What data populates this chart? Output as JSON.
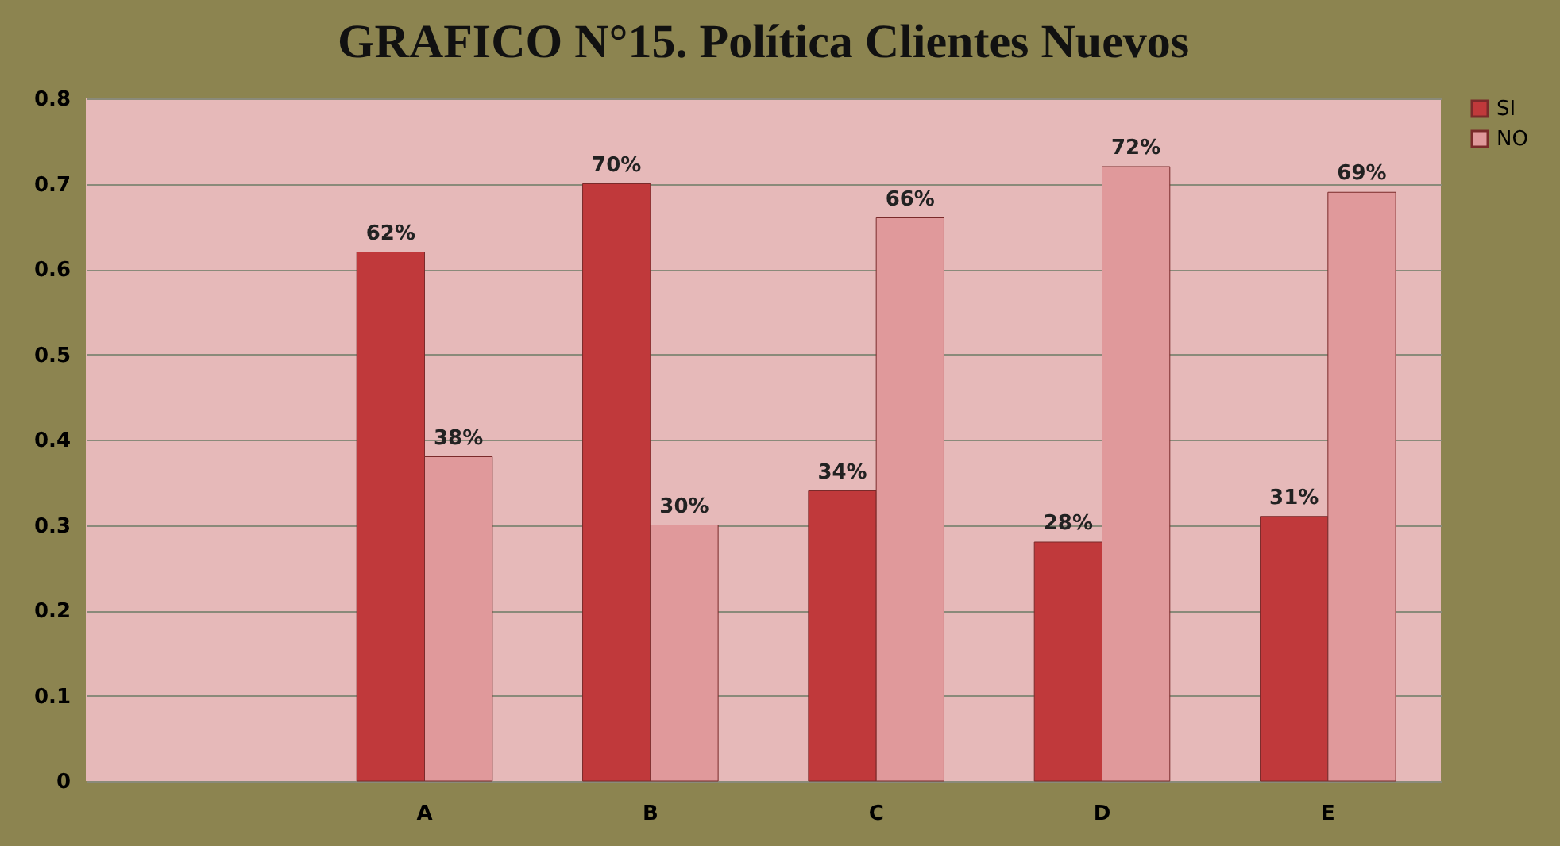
{
  "chart_data": {
    "type": "bar",
    "title": "GRAFICO N°15. Política Clientes Nuevos",
    "categories": [
      null,
      "A",
      "B",
      "C",
      "D",
      "E"
    ],
    "series": [
      {
        "name": "SI",
        "color": "#c0393b",
        "values": [
          null,
          0.62,
          0.7,
          0.34,
          0.28,
          0.31
        ],
        "value_labels": [
          null,
          "62%",
          "70%",
          "34%",
          "28%",
          "31%"
        ]
      },
      {
        "name": "NO",
        "color": "#e0999b",
        "values": [
          null,
          0.38,
          0.3,
          0.66,
          0.72,
          0.69
        ],
        "value_labels": [
          null,
          "38%",
          "30%",
          "66%",
          "72%",
          "69%"
        ]
      }
    ],
    "ylim": [
      0,
      0.8
    ],
    "yticks": [
      0,
      0.1,
      0.2,
      0.3,
      0.4,
      0.5,
      0.6,
      0.7,
      0.8
    ],
    "grid": "y",
    "legend": "right"
  }
}
